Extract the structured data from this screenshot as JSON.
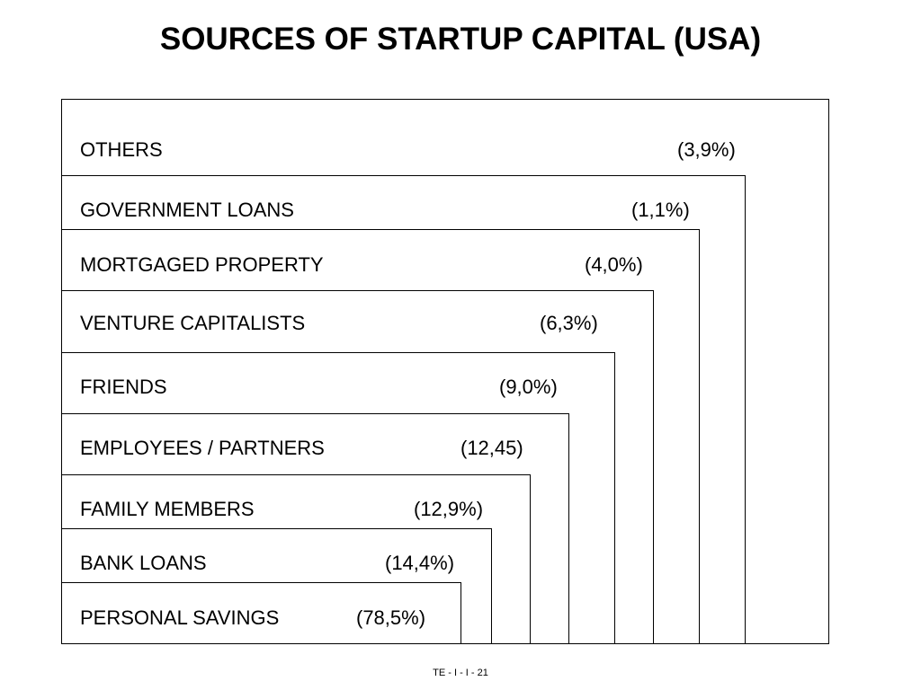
{
  "title": "SOURCES OF STARTUP CAPITAL (USA)",
  "footer": "TE - I - I - 21",
  "sources": [
    {
      "label": "OTHERS",
      "value": "(3,9%)"
    },
    {
      "label": "GOVERNMENT LOANS",
      "value": "(1,1%)"
    },
    {
      "label": "MORTGAGED PROPERTY",
      "value": "(4,0%)"
    },
    {
      "label": "VENTURE CAPITALISTS",
      "value": "(6,3%)"
    },
    {
      "label": "FRIENDS",
      "value": "(9,0%)"
    },
    {
      "label": "EMPLOYEES / PARTNERS",
      "value": "(12,45)"
    },
    {
      "label": "FAMILY MEMBERS",
      "value": "(12,9%)"
    },
    {
      "label": "BANK LOANS",
      "value": "(14,4%)"
    },
    {
      "label": "PERSONAL SAVINGS",
      "value": "(78,5%)"
    }
  ]
}
